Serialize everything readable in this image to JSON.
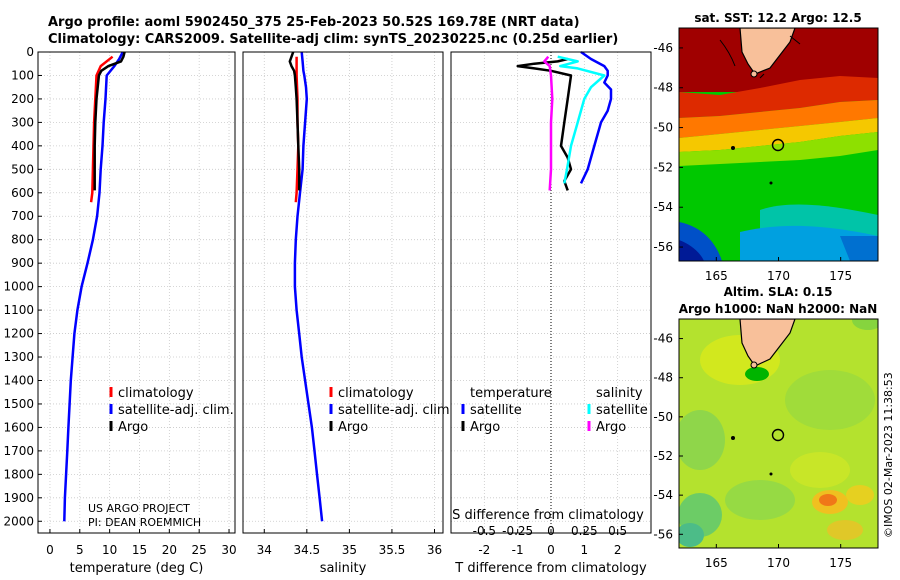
{
  "header": {
    "title_line1": "Argo profile: aoml 5902450_375 25-Feb-2023 50.52S 169.78E (NRT data)",
    "title_line2": "Climatology: CARS2009. Satellite-adj clim: synTS_20230225.nc (0.25d earlier)"
  },
  "maps": {
    "sst": {
      "title": "sat. SST: 12.2 Argo: 12.5"
    },
    "sla": {
      "title_line1": "Altim. SLA: 0.15",
      "title_line2": "Argo h1000: NaN h2000: NaN"
    },
    "lon_ticks": [
      "165",
      "170",
      "175"
    ],
    "lat_ticks": [
      "-46",
      "-48",
      "-50",
      "-52",
      "-54",
      "-56"
    ],
    "float_position": {
      "lon": 169.78,
      "lat": -50.52
    }
  },
  "watermark": "©IMOS 02-Mar-2023 11:38:53",
  "credit": {
    "line1": "US ARGO PROJECT",
    "line2": "PI: DEAN ROEMMICH"
  },
  "colors": {
    "climatology": "#ff0000",
    "satellite_adj": "#0000ff",
    "argo": "#000000",
    "sat_salinity": "#00ffff",
    "argo_salinity": "#ff00ff"
  },
  "chart_data": [
    {
      "type": "line",
      "name": "temperature",
      "xlabel": "temperature (deg C)",
      "ylabel": "",
      "xlim": [
        -2,
        31
      ],
      "ylim": [
        2050,
        0
      ],
      "xticks": [
        0,
        5,
        10,
        15,
        20,
        25,
        30
      ],
      "yticks": [
        0,
        100,
        200,
        300,
        400,
        500,
        600,
        700,
        800,
        900,
        1000,
        1100,
        1200,
        1300,
        1400,
        1500,
        1600,
        1700,
        1800,
        1900,
        2000
      ],
      "legend": [
        "climatology",
        "satellite-adj. clim.",
        "Argo"
      ],
      "series": [
        {
          "name": "climatology",
          "color": "#ff0000",
          "depth": [
            20,
            60,
            100,
            200,
            300,
            400,
            500,
            600,
            640
          ],
          "values": [
            10.5,
            8.5,
            7.8,
            7.6,
            7.4,
            7.3,
            7.2,
            7.1,
            6.9
          ]
        },
        {
          "name": "satellite-adj. clim.",
          "color": "#0000ff",
          "depth": [
            0,
            30,
            60,
            100,
            200,
            300,
            400,
            500,
            600,
            700,
            800,
            900,
            1000,
            1100,
            1200,
            1300,
            1400,
            1500,
            1600,
            1700,
            1800,
            1900,
            2000
          ],
          "values": [
            12.2,
            11.6,
            10.8,
            9.5,
            9.3,
            9.0,
            8.8,
            8.5,
            8.3,
            7.9,
            7.2,
            6.3,
            5.3,
            4.6,
            4.1,
            3.8,
            3.5,
            3.3,
            3.1,
            2.9,
            2.7,
            2.5,
            2.4
          ]
        },
        {
          "name": "Argo",
          "color": "#000000",
          "depth": [
            0,
            20,
            40,
            60,
            80,
            100,
            150,
            200,
            300,
            400,
            500,
            590
          ],
          "values": [
            12.5,
            12.3,
            11.9,
            9.8,
            8.6,
            8.2,
            8.0,
            7.8,
            7.6,
            7.5,
            7.5,
            7.5
          ]
        }
      ]
    },
    {
      "type": "line",
      "name": "salinity",
      "xlabel": "salinity",
      "xlim": [
        33.75,
        36.1
      ],
      "ylim": [
        2050,
        0
      ],
      "xticks": [
        34,
        34.5,
        35,
        35.5,
        36
      ],
      "legend": [
        "climatology",
        "satellite-adj. clim.",
        "Argo"
      ],
      "series": [
        {
          "name": "climatology",
          "color": "#ff0000",
          "depth": [
            20,
            100,
            200,
            300,
            400,
            500,
            600,
            640
          ],
          "values": [
            34.38,
            34.38,
            34.39,
            34.39,
            34.4,
            34.39,
            34.38,
            34.37
          ]
        },
        {
          "name": "satellite-adj. clim.",
          "color": "#0000ff",
          "depth": [
            0,
            40,
            80,
            100,
            150,
            200,
            300,
            400,
            500,
            600,
            700,
            800,
            900,
            1000,
            1100,
            1200,
            1300,
            1400,
            1500,
            1600,
            1700,
            1800,
            1900,
            2000
          ],
          "values": [
            34.44,
            34.45,
            34.46,
            34.47,
            34.49,
            34.5,
            34.48,
            34.46,
            34.45,
            34.42,
            34.39,
            34.37,
            34.36,
            34.36,
            34.38,
            34.41,
            34.44,
            34.48,
            34.52,
            34.56,
            34.59,
            34.62,
            34.65,
            34.68
          ]
        },
        {
          "name": "Argo",
          "color": "#000000",
          "depth": [
            0,
            40,
            60,
            80,
            100,
            150,
            200,
            300,
            400,
            500,
            590
          ],
          "values": [
            34.34,
            34.3,
            34.32,
            34.35,
            34.36,
            34.37,
            34.38,
            34.39,
            34.4,
            34.41,
            34.41
          ]
        }
      ]
    },
    {
      "type": "line",
      "name": "difference",
      "xlabel": "T difference from climatology",
      "xlabel_top": "S difference from climatology",
      "xlim": [
        -3.0,
        3.0
      ],
      "ylim": [
        2050,
        0
      ],
      "xticks": [
        -2,
        -1,
        0,
        1,
        2
      ],
      "s_ticks": [
        "-0.5",
        "-0.25",
        "0",
        "0.25",
        "0.5"
      ],
      "legend_temperature": {
        "header": "temperature",
        "items": [
          "satellite",
          "Argo"
        ]
      },
      "legend_salinity": {
        "header": "salinity",
        "items": [
          "satellite",
          "Argo"
        ]
      },
      "series": [
        {
          "name": "T satellite",
          "color": "#0000ff",
          "depth": [
            0,
            30,
            60,
            80,
            100,
            130,
            160,
            200,
            250,
            300,
            400,
            500,
            560
          ],
          "values": [
            0.9,
            1.2,
            1.6,
            1.7,
            1.7,
            1.6,
            1.8,
            1.8,
            1.7,
            1.5,
            1.3,
            1.1,
            0.9
          ]
        },
        {
          "name": "T Argo",
          "color": "#000000",
          "depth": [
            30,
            40,
            50,
            60,
            70,
            80,
            100,
            200,
            300,
            400,
            450,
            500,
            550,
            590
          ],
          "values": [
            0.5,
            0.2,
            -0.5,
            -1.0,
            -0.5,
            0.0,
            0.6,
            0.5,
            0.4,
            0.3,
            0.5,
            0.6,
            0.4,
            0.5
          ]
        },
        {
          "name": "S satellite",
          "color": "#00ffff",
          "depth": [
            20,
            40,
            60,
            70,
            100,
            150,
            200,
            300,
            400,
            500,
            560
          ],
          "values": [
            0.05,
            0.2,
            0.07,
            0.2,
            0.4,
            0.3,
            0.25,
            0.2,
            0.15,
            0.12,
            0.1
          ]
        },
        {
          "name": "S Argo",
          "color": "#ff00ff",
          "depth": [
            20,
            40,
            60,
            100,
            200,
            300,
            400,
            500,
            590
          ],
          "values": [
            -0.02,
            -0.05,
            -0.01,
            0.0,
            0.01,
            0.0,
            0.0,
            0.0,
            -0.01
          ]
        }
      ]
    }
  ]
}
